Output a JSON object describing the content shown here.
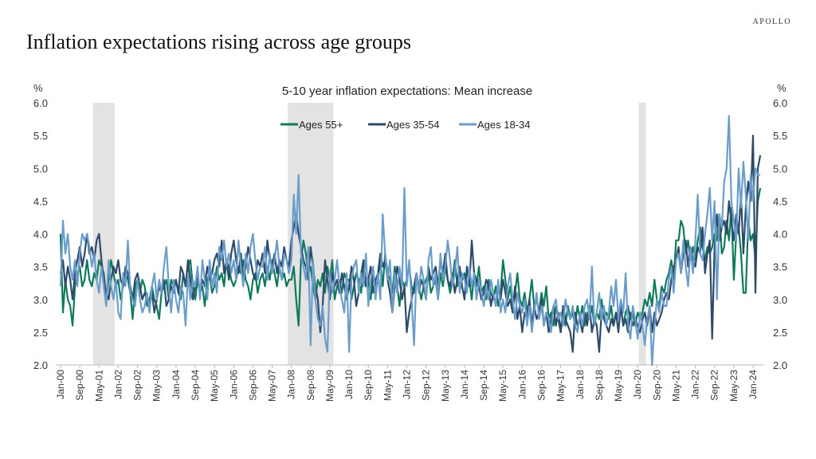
{
  "brand": "APOLLO",
  "page_title": "Inflation expectations rising across age groups",
  "chart_data": {
    "type": "line",
    "title": "5-10 year inflation expectations: Mean increase",
    "ylabel_left": "%",
    "ylabel_right": "%",
    "ylim": [
      2.0,
      6.0
    ],
    "yticks": [
      "2.0",
      "2.5",
      "3.0",
      "3.5",
      "4.0",
      "4.5",
      "5.0",
      "5.5",
      "6.0"
    ],
    "x_start": "Jan-00",
    "x_end": "Apr-24",
    "frequency": "monthly",
    "xtick_labels": [
      "Jan-00",
      "Sep-00",
      "May-01",
      "Jan-02",
      "Sep-02",
      "May-03",
      "Jan-04",
      "Sep-04",
      "May-05",
      "Jan-06",
      "Sep-06",
      "May-07",
      "Jan-08",
      "Sep-08",
      "May-09",
      "Jan-10",
      "Sep-10",
      "May-11",
      "Jan-12",
      "Sep-12",
      "May-13",
      "Jan-14",
      "Sep-14",
      "May-15",
      "Jan-16",
      "Sep-16",
      "May-17",
      "Jan-18",
      "Sep-18",
      "May-19",
      "Jan-20",
      "Sep-20",
      "May-21",
      "Jan-22",
      "Sep-22",
      "May-23",
      "Jan-24"
    ],
    "legend_placement": "top-center",
    "grid": false,
    "recessions": [
      [
        "Mar-01",
        "Nov-01"
      ],
      [
        "Dec-07",
        "Jun-09"
      ],
      [
        "Feb-20",
        "Apr-20"
      ]
    ],
    "recession_color": "#e3e3e3",
    "series": [
      {
        "name": "Ages 55+",
        "color": "#0e7a5a",
        "values": [
          4.0,
          2.8,
          3.3,
          3.0,
          2.9,
          2.6,
          3.2,
          3.4,
          3.5,
          3.2,
          3.3,
          3.6,
          3.3,
          3.2,
          3.4,
          3.3,
          3.6,
          3.5,
          3.4,
          3.0,
          3.3,
          3.6,
          3.4,
          3.2,
          3.3,
          3.0,
          3.2,
          3.4,
          3.3,
          3.1,
          2.7,
          3.2,
          3.3,
          3.1,
          3.3,
          3.2,
          2.9,
          3.0,
          3.2,
          3.0,
          2.9,
          2.7,
          3.1,
          3.2,
          3.3,
          3.0,
          3.3,
          3.2,
          3.3,
          3.1,
          3.0,
          3.4,
          3.2,
          3.5,
          3.6,
          3.2,
          3.0,
          3.3,
          3.1,
          3.2,
          2.9,
          3.3,
          3.4,
          3.1,
          3.2,
          3.5,
          3.3,
          3.4,
          3.2,
          3.6,
          3.5,
          3.3,
          3.2,
          3.3,
          3.5,
          3.4,
          3.6,
          3.3,
          3.2,
          3.0,
          3.3,
          3.4,
          3.1,
          3.3,
          3.4,
          3.2,
          3.5,
          3.3,
          3.6,
          3.4,
          3.2,
          3.5,
          3.3,
          3.4,
          3.2,
          3.3,
          3.3,
          3.5,
          3.0,
          2.6,
          3.6,
          3.9,
          3.7,
          3.4,
          3.5,
          3.2,
          3.0,
          3.3,
          3.2,
          3.4,
          3.1,
          3.5,
          3.3,
          3.6,
          3.0,
          3.2,
          3.3,
          3.1,
          3.4,
          3.3,
          3.3,
          3.0,
          3.2,
          3.4,
          3.3,
          3.1,
          3.5,
          3.2,
          3.3,
          3.0,
          3.4,
          3.2,
          3.3,
          3.6,
          3.2,
          3.7,
          3.4,
          3.3,
          3.1,
          3.5,
          3.2,
          2.9,
          3.3,
          3.2,
          3.3,
          3.5,
          3.2,
          3.1,
          3.4,
          3.2,
          3.0,
          3.2,
          3.3,
          3.4,
          3.1,
          3.2,
          3.3,
          3.0,
          3.4,
          3.2,
          3.5,
          3.3,
          3.1,
          3.3,
          3.6,
          3.2,
          3.4,
          3.3,
          3.4,
          3.2,
          3.3,
          3.0,
          3.4,
          3.2,
          3.5,
          3.1,
          3.2,
          3.0,
          3.3,
          3.1,
          3.0,
          3.2,
          2.9,
          3.1,
          3.6,
          3.3,
          3.0,
          3.2,
          2.9,
          3.1,
          3.4,
          3.0,
          2.9,
          3.1,
          2.8,
          3.0,
          3.3,
          2.9,
          3.0,
          2.8,
          3.1,
          2.9,
          3.2,
          2.7,
          2.8,
          2.6,
          2.9,
          2.7,
          2.5,
          2.8,
          2.6,
          2.9,
          2.7,
          2.8,
          2.6,
          2.9,
          2.7,
          2.9,
          2.6,
          2.8,
          2.7,
          2.9,
          2.6,
          2.8,
          2.7,
          3.0,
          2.7,
          2.8,
          2.7,
          2.9,
          2.6,
          2.8,
          2.7,
          2.9,
          2.6,
          2.8,
          2.9,
          2.7,
          2.8,
          2.6,
          2.8,
          2.7,
          2.8,
          3.0,
          2.9,
          3.1,
          2.9,
          3.3,
          3.0,
          2.9,
          3.2,
          3.1,
          3.3,
          3.4,
          3.6,
          3.3,
          3.9,
          3.9,
          4.2,
          4.1,
          3.7,
          3.9,
          3.6,
          3.8,
          3.6,
          3.9,
          4.1,
          3.8,
          3.6,
          3.8,
          3.7,
          3.8,
          4.0,
          3.9,
          4.3,
          3.7,
          3.8,
          4.2,
          3.9,
          4.4,
          3.3,
          4.0,
          4.1,
          3.7,
          3.1,
          3.1,
          4.2,
          3.9,
          4.0,
          3.6,
          4.5,
          4.7
        ]
      },
      {
        "name": "Ages 35-54",
        "color": "#2e4a6a",
        "values": [
          3.4,
          3.6,
          3.2,
          3.5,
          3.3,
          3.0,
          3.4,
          3.6,
          3.8,
          3.5,
          3.7,
          4.0,
          3.7,
          3.8,
          3.6,
          3.9,
          4.0,
          3.6,
          3.3,
          3.1,
          3.0,
          3.3,
          3.5,
          3.4,
          3.6,
          3.3,
          3.2,
          3.5,
          3.4,
          3.2,
          3.0,
          3.3,
          3.4,
          3.2,
          3.0,
          3.1,
          3.0,
          2.9,
          3.1,
          2.8,
          3.0,
          3.2,
          3.1,
          3.3,
          2.9,
          3.0,
          3.2,
          3.1,
          3.3,
          3.1,
          3.5,
          3.4,
          3.2,
          3.6,
          3.3,
          3.0,
          3.2,
          3.4,
          3.1,
          3.3,
          3.2,
          3.5,
          3.3,
          3.4,
          3.6,
          3.7,
          3.5,
          3.9,
          3.4,
          3.6,
          3.3,
          3.7,
          3.9,
          3.6,
          3.4,
          3.7,
          3.3,
          3.5,
          3.8,
          3.6,
          3.4,
          3.3,
          3.6,
          3.5,
          3.7,
          3.4,
          3.9,
          3.6,
          3.5,
          3.7,
          3.4,
          3.6,
          3.5,
          3.8,
          3.6,
          3.5,
          3.9,
          4.1,
          4.3,
          4.0,
          3.8,
          3.6,
          3.5,
          3.3,
          3.8,
          3.5,
          3.2,
          3.0,
          2.5,
          2.9,
          3.6,
          3.3,
          3.0,
          3.4,
          3.2,
          3.3,
          3.1,
          3.4,
          3.2,
          3.0,
          3.2,
          3.5,
          3.3,
          2.9,
          3.1,
          3.4,
          3.6,
          3.2,
          3.3,
          3.5,
          3.1,
          3.3,
          3.4,
          3.7,
          3.5,
          3.6,
          3.3,
          3.1,
          2.8,
          3.2,
          3.5,
          3.3,
          3.0,
          3.2,
          2.5,
          2.8,
          3.0,
          3.2,
          3.4,
          3.1,
          3.3,
          3.2,
          3.0,
          3.5,
          3.3,
          3.4,
          3.5,
          3.2,
          3.6,
          3.4,
          3.7,
          3.3,
          3.2,
          3.4,
          3.1,
          3.3,
          3.5,
          3.2,
          3.0,
          3.5,
          3.2,
          3.9,
          3.4,
          3.3,
          3.2,
          3.0,
          3.1,
          3.3,
          3.2,
          2.9,
          3.1,
          2.9,
          3.2,
          3.0,
          3.3,
          3.1,
          2.9,
          3.0,
          2.8,
          3.2,
          2.7,
          2.9,
          2.5,
          2.8,
          2.7,
          3.0,
          2.6,
          2.9,
          2.7,
          2.8,
          3.0,
          2.6,
          2.8,
          2.5,
          2.7,
          2.9,
          2.6,
          2.8,
          2.5,
          2.9,
          2.7,
          2.6,
          2.5,
          2.2,
          2.8,
          2.6,
          2.7,
          2.5,
          2.8,
          2.6,
          2.9,
          2.5,
          2.7,
          2.6,
          2.2,
          2.8,
          2.7,
          2.6,
          2.5,
          2.7,
          2.6,
          2.8,
          2.5,
          2.9,
          2.6,
          2.7,
          2.5,
          2.8,
          2.6,
          2.7,
          2.6,
          2.5,
          2.7,
          2.8,
          2.6,
          2.9,
          2.5,
          2.8,
          2.6,
          2.7,
          2.8,
          3.0,
          3.1,
          3.0,
          3.3,
          3.5,
          3.6,
          3.8,
          3.4,
          3.7,
          3.9,
          3.5,
          3.8,
          3.6,
          3.5,
          3.8,
          3.7,
          4.1,
          3.4,
          3.7,
          3.9,
          2.4,
          3.8,
          4.3,
          3.9,
          4.1,
          4.2,
          4.0,
          4.5,
          4.2,
          3.9,
          4.3,
          4.0,
          4.6,
          3.7,
          4.4,
          4.8,
          4.5,
          5.5,
          3.1,
          5.0,
          5.2
        ]
      },
      {
        "name": "Ages 18-34",
        "color": "#6b9dcc",
        "values": [
          3.2,
          4.2,
          3.7,
          4.0,
          3.5,
          3.3,
          3.6,
          3.2,
          3.7,
          4.0,
          3.9,
          4.0,
          3.8,
          3.5,
          3.7,
          3.3,
          3.1,
          3.5,
          3.2,
          2.9,
          3.6,
          3.2,
          3.0,
          3.3,
          2.8,
          2.7,
          3.4,
          3.2,
          3.9,
          3.1,
          3.0,
          2.9,
          3.3,
          3.0,
          2.8,
          2.9,
          3.1,
          2.8,
          3.2,
          3.4,
          3.0,
          3.3,
          3.1,
          3.5,
          3.8,
          3.2,
          2.8,
          3.3,
          3.0,
          2.8,
          3.2,
          3.1,
          2.6,
          3.4,
          3.0,
          3.3,
          3.2,
          3.5,
          3.0,
          3.6,
          3.3,
          3.0,
          3.6,
          3.2,
          3.4,
          3.1,
          3.8,
          3.6,
          3.9,
          3.5,
          3.7,
          3.4,
          3.6,
          3.3,
          3.9,
          3.5,
          3.2,
          3.7,
          3.4,
          3.8,
          4.0,
          3.6,
          3.3,
          3.5,
          3.5,
          3.8,
          3.3,
          3.7,
          3.4,
          3.6,
          3.9,
          3.5,
          3.3,
          3.7,
          3.6,
          3.4,
          3.6,
          4.6,
          4.0,
          4.9,
          3.7,
          3.5,
          3.3,
          3.8,
          2.3,
          3.6,
          3.0,
          2.7,
          2.6,
          2.9,
          2.4,
          2.2,
          3.4,
          3.1,
          3.3,
          3.6,
          3.2,
          3.0,
          2.8,
          3.4,
          2.2,
          3.3,
          3.5,
          3.6,
          3.1,
          3.4,
          3.2,
          3.7,
          2.9,
          3.3,
          3.5,
          3.0,
          3.4,
          3.0,
          4.3,
          3.7,
          3.3,
          3.6,
          2.8,
          3.4,
          3.1,
          3.5,
          3.2,
          4.7,
          3.2,
          3.6,
          3.0,
          2.3,
          3.4,
          3.1,
          3.5,
          3.3,
          3.0,
          3.6,
          3.8,
          3.2,
          3.4,
          3.0,
          3.7,
          3.3,
          3.5,
          3.9,
          3.6,
          3.2,
          3.4,
          3.8,
          3.1,
          3.4,
          3.3,
          3.1,
          3.5,
          3.2,
          3.4,
          3.0,
          3.3,
          3.1,
          2.9,
          3.2,
          3.0,
          3.3,
          3.1,
          2.9,
          3.3,
          2.8,
          3.0,
          2.8,
          3.2,
          3.4,
          3.0,
          2.7,
          3.1,
          2.9,
          2.8,
          3.0,
          2.6,
          2.9,
          2.5,
          2.8,
          3.1,
          2.7,
          2.9,
          2.6,
          2.8,
          2.7,
          2.5,
          2.9,
          3.0,
          2.7,
          2.8,
          2.6,
          3.0,
          2.8,
          2.7,
          2.9,
          2.6,
          2.5,
          2.8,
          2.6,
          2.9,
          3.0,
          2.7,
          3.5,
          2.6,
          2.8,
          3.1,
          2.7,
          2.9,
          2.6,
          2.8,
          3.2,
          2.9,
          3.3,
          2.7,
          3.0,
          2.8,
          3.4,
          2.6,
          2.4,
          2.9,
          2.7,
          2.4,
          2.8,
          2.6,
          2.3,
          2.7,
          2.9,
          2.0,
          2.6,
          3.0,
          2.8,
          3.1,
          2.9,
          2.9,
          3.3,
          3.5,
          3.1,
          3.6,
          3.7,
          3.4,
          3.9,
          3.5,
          3.2,
          3.8,
          3.4,
          3.9,
          4.6,
          3.7,
          3.6,
          4.0,
          4.3,
          4.7,
          3.9,
          4.5,
          3.0,
          4.3,
          4.1,
          4.8,
          5.0,
          5.8,
          4.5,
          4.2,
          3.9,
          5.0,
          4.4,
          5.1,
          4.6,
          3.9,
          4.9,
          4.5,
          5.0,
          4.9,
          4.9
        ]
      }
    ]
  }
}
